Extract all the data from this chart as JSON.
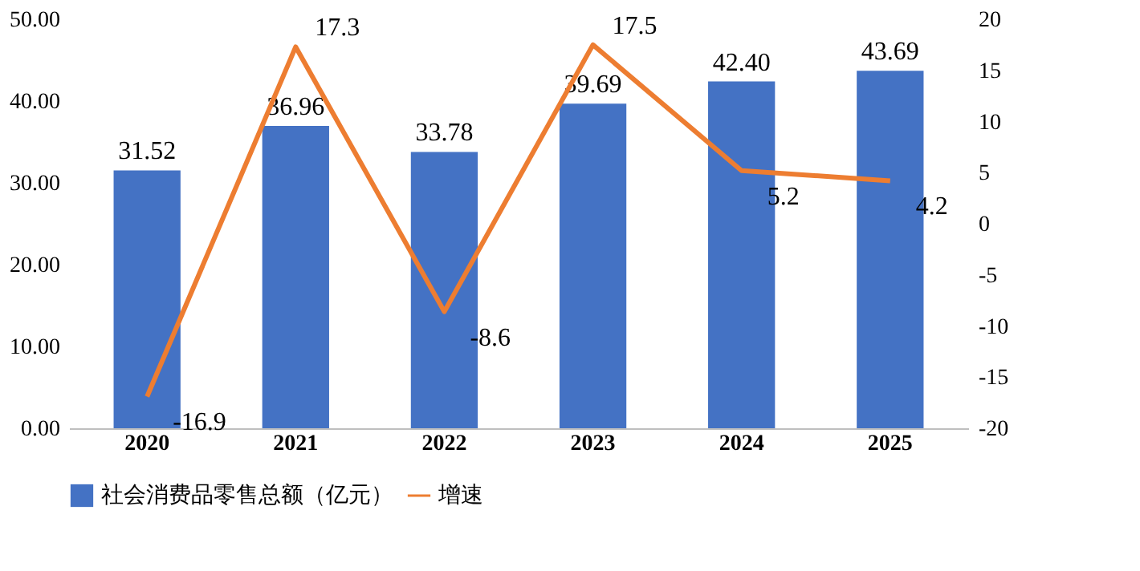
{
  "chart_data": {
    "type": "bar",
    "categories": [
      "2020",
      "2021",
      "2022",
      "2023",
      "2024",
      "2025"
    ],
    "series": [
      {
        "name": "社会消费品零售总额（亿元）",
        "type": "bar",
        "color": "#4472c4",
        "values": [
          31.52,
          36.96,
          33.78,
          39.69,
          42.4,
          43.69
        ],
        "value_labels": [
          "31.52",
          "36.96",
          "33.78",
          "39.69",
          "42.40",
          "43.69"
        ]
      },
      {
        "name": "增速",
        "type": "line",
        "axis": "y2",
        "color": "#ed7d31",
        "values": [
          -16.9,
          17.3,
          -8.6,
          17.5,
          5.2,
          4.2
        ],
        "value_labels": [
          "-16.9",
          "17.3",
          "-8.6",
          "17.5",
          "5.2",
          "4.2"
        ]
      }
    ],
    "ylim": [
      0,
      50
    ],
    "yticks": [
      {
        "value": 0,
        "label": "0.00"
      },
      {
        "value": 10,
        "label": "10.00"
      },
      {
        "value": 20,
        "label": "20.00"
      },
      {
        "value": 30,
        "label": "30.00"
      },
      {
        "value": 40,
        "label": "40.00"
      },
      {
        "value": 50,
        "label": "50.00"
      }
    ],
    "y2lim": [
      -20,
      20
    ],
    "y2ticks": [
      -20,
      -15,
      -10,
      -5,
      0,
      5,
      10,
      15,
      20
    ],
    "legend": "bottom",
    "grid": false,
    "marker": "none",
    "line_style": "solid"
  }
}
